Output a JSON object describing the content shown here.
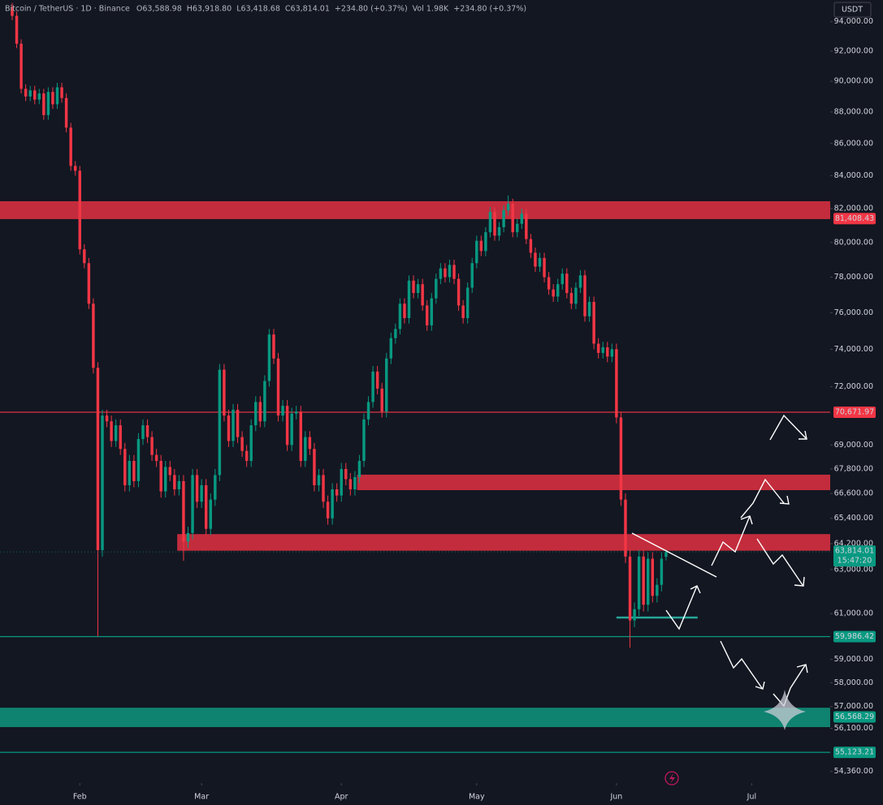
{
  "chart_data": {
    "type": "candlestick",
    "title": "Bitcoin / TetherUS · 1D · Binance",
    "ohlc_text": [
      "O63,588.98",
      "H63,918.80",
      "L63,418.68",
      "C63,814.01",
      "+234.80 (+0.37%)",
      "Vol 1.98K",
      "+234.80 (+0.37%)"
    ],
    "currency": "USDT",
    "log": true,
    "up_color": "#089981",
    "down_color": "#f23645",
    "ylim": [
      53900,
      95500
    ],
    "yticks": [
      {
        "value": 94000,
        "label": "94,000.00"
      },
      {
        "value": 92000,
        "label": "92,000.00"
      },
      {
        "value": 90000,
        "label": "90,000.00"
      },
      {
        "value": 88000,
        "label": "88,000.00"
      },
      {
        "value": 86000,
        "label": "86,000.00"
      },
      {
        "value": 84000,
        "label": "84,000.00"
      },
      {
        "value": 82000,
        "label": "82,000.00"
      },
      {
        "value": 80000,
        "label": "80,000.00"
      },
      {
        "value": 78000,
        "label": "78,000.00"
      },
      {
        "value": 76000,
        "label": "76,000.00"
      },
      {
        "value": 74000,
        "label": "74,000.00"
      },
      {
        "value": 72000,
        "label": "72,000.00"
      },
      {
        "value": 69000,
        "label": "69,000.00"
      },
      {
        "value": 67800,
        "label": "67,800.00"
      },
      {
        "value": 66600,
        "label": "66,600.00"
      },
      {
        "value": 65400,
        "label": "65,400.00"
      },
      {
        "value": 64200,
        "label": "64,200.00"
      },
      {
        "value": 63000,
        "label": "63,000.00"
      },
      {
        "value": 61000,
        "label": "61,000.00"
      },
      {
        "value": 59000,
        "label": "59,000.00"
      },
      {
        "value": 58000,
        "label": "58,000.00"
      },
      {
        "value": 57000,
        "label": "57,000.00"
      },
      {
        "value": 56100,
        "label": "56,100.00"
      },
      {
        "value": 54360,
        "label": "54,360.00"
      }
    ],
    "xlim": [
      -2.7,
      181.4
    ],
    "xticks": [
      {
        "value": 15,
        "label": "Feb"
      },
      {
        "value": 42,
        "label": "Mar"
      },
      {
        "value": 73,
        "label": "Apr"
      },
      {
        "value": 103,
        "label": "May"
      },
      {
        "value": 134,
        "label": "Jun"
      },
      {
        "value": 164,
        "label": "Jul"
      }
    ],
    "zones": [
      {
        "from": 81378,
        "to": 82446,
        "start": -2.7,
        "color": "#d32f3f"
      },
      {
        "from": 66760,
        "to": 67520,
        "start": 76.5,
        "color": "#d32f3f"
      },
      {
        "from": 63870,
        "to": 64650,
        "start": 36.6,
        "color": "#d32f3f"
      },
      {
        "from": 56150,
        "to": 56950,
        "start": -2.7,
        "color": "#0f8c77"
      }
    ],
    "levels": [
      {
        "value": 81408.43,
        "label": "81,408.43",
        "color": "#f23645"
      },
      {
        "value": 70671.97,
        "label": "70,671.97",
        "color": "#f23645",
        "line": true
      },
      {
        "value": 59986.42,
        "label": "59,986.42",
        "color": "#089981",
        "line": true
      },
      {
        "value": 56568.29,
        "label": "56,568.29",
        "color": "#089981"
      },
      {
        "value": 55123.21,
        "label": "55,123.21",
        "color": "#089981",
        "line": true
      }
    ],
    "support": {
      "value": 60830,
      "start": 134,
      "end": 152,
      "color": "#26a69a"
    },
    "last_price": {
      "value": 63814.01,
      "label": "63,814.01",
      "countdown": "15:47:20",
      "color": "#089981"
    },
    "candles": [
      [
        95000,
        95300,
        94100,
        94400
      ],
      [
        94400,
        94700,
        92200,
        92500
      ],
      [
        92500,
        92800,
        89200,
        89500
      ],
      [
        89500,
        89800,
        88700,
        89000
      ],
      [
        89000,
        89700,
        88700,
        89400
      ],
      [
        89400,
        89700,
        88500,
        88800
      ],
      [
        88800,
        89500,
        88500,
        89200
      ],
      [
        89200,
        89500,
        87500,
        87800
      ],
      [
        87800,
        89600,
        87500,
        89300
      ],
      [
        89300,
        89600,
        88200,
        88500
      ],
      [
        88500,
        89900,
        88200,
        89600
      ],
      [
        89600,
        89900,
        88600,
        88900
      ],
      [
        88900,
        89200,
        86700,
        87000
      ],
      [
        87000,
        87300,
        84300,
        84600
      ],
      [
        84600,
        84900,
        84000,
        84300
      ],
      [
        84300,
        84600,
        79300,
        79600
      ],
      [
        79600,
        79900,
        78500,
        78800
      ],
      [
        78800,
        79100,
        76200,
        76500
      ],
      [
        76500,
        76800,
        72700,
        73000
      ],
      [
        73000,
        73300,
        60000,
        63900
      ],
      [
        63900,
        70800,
        63600,
        70500
      ],
      [
        70500,
        70800,
        69900,
        70200
      ],
      [
        70200,
        70500,
        68900,
        69200
      ],
      [
        69200,
        70300,
        68900,
        70000
      ],
      [
        70000,
        70300,
        68500,
        68800
      ],
      [
        68800,
        69100,
        66700,
        67000
      ],
      [
        67000,
        68500,
        66700,
        68200
      ],
      [
        68200,
        68500,
        66900,
        67200
      ],
      [
        67200,
        69600,
        66900,
        69300
      ],
      [
        69300,
        70300,
        69000,
        70000
      ],
      [
        70000,
        70300,
        69100,
        69400
      ],
      [
        69400,
        69700,
        68200,
        68500
      ],
      [
        68500,
        68800,
        67900,
        68200
      ],
      [
        68200,
        68500,
        66400,
        66700
      ],
      [
        66700,
        68200,
        66400,
        67900
      ],
      [
        67900,
        68200,
        67200,
        67500
      ],
      [
        67500,
        67800,
        66500,
        66800
      ],
      [
        66800,
        67500,
        66500,
        67200
      ],
      [
        67200,
        67500,
        63400,
        64300
      ],
      [
        64300,
        65000,
        64000,
        64700
      ],
      [
        64700,
        67800,
        64400,
        67500
      ],
      [
        67500,
        67800,
        65900,
        66200
      ],
      [
        66200,
        67300,
        65900,
        67000
      ],
      [
        67000,
        67300,
        64600,
        64900
      ],
      [
        64900,
        66600,
        64600,
        66300
      ],
      [
        66300,
        67800,
        66000,
        67500
      ],
      [
        67500,
        73200,
        67200,
        72900
      ],
      [
        72900,
        73200,
        70200,
        70500
      ],
      [
        70500,
        70800,
        68900,
        69200
      ],
      [
        69200,
        71100,
        68900,
        70800
      ],
      [
        70800,
        71100,
        69100,
        69400
      ],
      [
        69400,
        69700,
        68400,
        68700
      ],
      [
        68700,
        69000,
        67900,
        68200
      ],
      [
        68200,
        70300,
        67900,
        70000
      ],
      [
        70000,
        71500,
        69700,
        71200
      ],
      [
        71200,
        71500,
        69900,
        70200
      ],
      [
        70200,
        72600,
        69900,
        72300
      ],
      [
        72300,
        75100,
        72000,
        74800
      ],
      [
        74800,
        75100,
        73200,
        73500
      ],
      [
        73500,
        73800,
        70200,
        70500
      ],
      [
        70500,
        71300,
        70200,
        71000
      ],
      [
        71000,
        71300,
        68700,
        69000
      ],
      [
        69000,
        70900,
        68700,
        70600
      ],
      [
        70600,
        71000,
        70300,
        70700
      ],
      [
        70700,
        71000,
        67900,
        68200
      ],
      [
        68200,
        69700,
        67900,
        69400
      ],
      [
        69400,
        69700,
        68500,
        68800
      ],
      [
        68800,
        69100,
        66700,
        67000
      ],
      [
        67000,
        67800,
        66700,
        67500
      ],
      [
        67500,
        67800,
        65900,
        66200
      ],
      [
        66200,
        66500,
        65100,
        65400
      ],
      [
        65400,
        67100,
        65100,
        66800
      ],
      [
        66800,
        67100,
        66200,
        66500
      ],
      [
        66500,
        68100,
        66200,
        67800
      ],
      [
        67800,
        68100,
        67000,
        67300
      ],
      [
        67300,
        67600,
        66500,
        66800
      ],
      [
        66800,
        67700,
        66500,
        67400
      ],
      [
        67400,
        68500,
        67100,
        68200
      ],
      [
        68200,
        70600,
        67900,
        70300
      ],
      [
        70300,
        71500,
        70000,
        71200
      ],
      [
        71200,
        73100,
        70900,
        72800
      ],
      [
        72800,
        73100,
        71600,
        71900
      ],
      [
        71900,
        72200,
        70400,
        70700
      ],
      [
        70700,
        73800,
        70400,
        73500
      ],
      [
        73500,
        74900,
        73200,
        74600
      ],
      [
        74600,
        75400,
        74300,
        75100
      ],
      [
        75100,
        76800,
        74800,
        76500
      ],
      [
        76500,
        76800,
        75400,
        75700
      ],
      [
        75700,
        78100,
        75400,
        77800
      ],
      [
        77800,
        78100,
        76800,
        77100
      ],
      [
        77100,
        77900,
        76800,
        77600
      ],
      [
        77600,
        77900,
        76100,
        76400
      ],
      [
        76400,
        76700,
        75000,
        75300
      ],
      [
        75300,
        77100,
        75000,
        76800
      ],
      [
        76800,
        78200,
        76500,
        77900
      ],
      [
        77900,
        78800,
        77600,
        78500
      ],
      [
        78500,
        78800,
        77700,
        78000
      ],
      [
        78000,
        79000,
        77700,
        78700
      ],
      [
        78700,
        79000,
        77600,
        77900
      ],
      [
        77900,
        78200,
        76100,
        76400
      ],
      [
        76400,
        76700,
        75400,
        75700
      ],
      [
        75700,
        77700,
        75400,
        77400
      ],
      [
        77400,
        79100,
        77100,
        78800
      ],
      [
        78800,
        80400,
        78500,
        80100
      ],
      [
        80100,
        80400,
        79200,
        79500
      ],
      [
        79500,
        80900,
        79200,
        80600
      ],
      [
        80600,
        82100,
        80300,
        81800
      ],
      [
        81800,
        82100,
        80100,
        80400
      ],
      [
        80400,
        81200,
        80100,
        80900
      ],
      [
        80900,
        82200,
        80600,
        81900
      ],
      [
        81900,
        82800,
        81600,
        82300
      ],
      [
        82300,
        82600,
        80300,
        80600
      ],
      [
        80600,
        81400,
        80300,
        81100
      ],
      [
        81100,
        82000,
        80800,
        81700
      ],
      [
        81700,
        82000,
        79900,
        80200
      ],
      [
        80200,
        80500,
        79100,
        79400
      ],
      [
        79400,
        79700,
        78300,
        78600
      ],
      [
        78600,
        79400,
        78300,
        79100
      ],
      [
        79100,
        79400,
        77700,
        78000
      ],
      [
        78000,
        78300,
        77000,
        77300
      ],
      [
        77300,
        77600,
        76600,
        76900
      ],
      [
        76900,
        77900,
        76600,
        77600
      ],
      [
        77600,
        78500,
        77300,
        78200
      ],
      [
        78200,
        78500,
        76800,
        77100
      ],
      [
        77100,
        77400,
        76200,
        76500
      ],
      [
        76500,
        77700,
        76200,
        77400
      ],
      [
        77400,
        78400,
        77100,
        78100
      ],
      [
        78100,
        78400,
        75500,
        75800
      ],
      [
        75800,
        76900,
        75500,
        76600
      ],
      [
        76600,
        76900,
        74000,
        74300
      ],
      [
        74300,
        74600,
        73500,
        73800
      ],
      [
        73800,
        74400,
        73500,
        74100
      ],
      [
        74100,
        74400,
        73300,
        73600
      ],
      [
        73600,
        74300,
        73300,
        74000
      ],
      [
        74000,
        74300,
        70100,
        70400
      ],
      [
        70400,
        70700,
        66000,
        66300
      ],
      [
        66300,
        66600,
        63300,
        63600
      ],
      [
        63600,
        63900,
        59500,
        60700
      ],
      [
        60700,
        61500,
        60400,
        61200
      ],
      [
        61200,
        63900,
        60900,
        63600
      ],
      [
        63600,
        63900,
        61100,
        61400
      ],
      [
        61400,
        63800,
        61100,
        63500
      ],
      [
        63500,
        63800,
        61500,
        61800
      ],
      [
        61800,
        62600,
        61500,
        62300
      ],
      [
        62300,
        63800,
        62000,
        63500
      ],
      [
        63588.98,
        63918.8,
        63418.68,
        63814.01
      ]
    ]
  }
}
